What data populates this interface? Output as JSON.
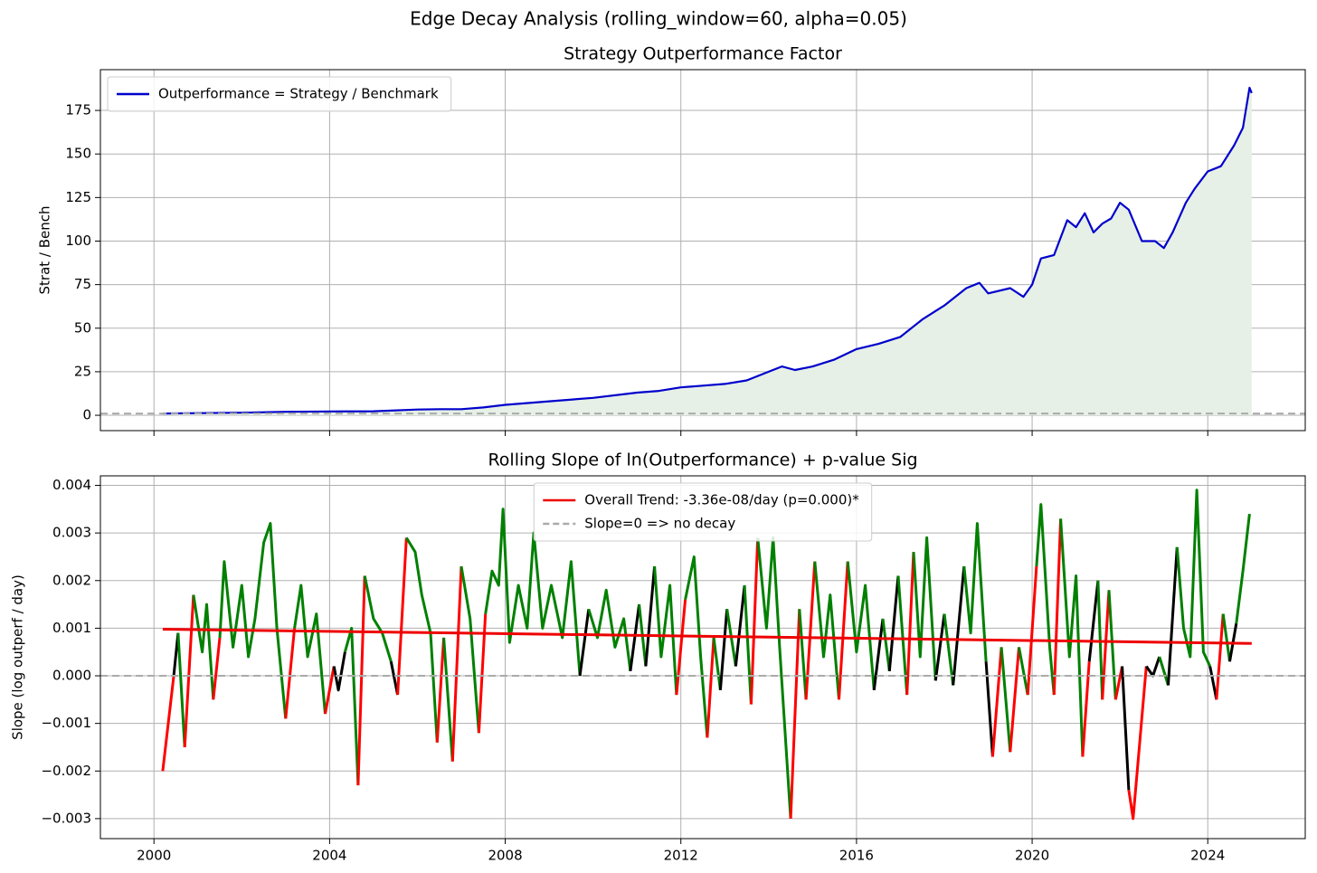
{
  "title": "Edge Decay Analysis (rolling_window=60, alpha=0.05)",
  "chart_data": [
    {
      "type": "line",
      "title": "Strategy Outperformance Factor",
      "ylabel": "Strat / Bench",
      "xlim": [
        1998.78,
        2026.22
      ],
      "ylim": [
        -8.8,
        198.4
      ],
      "xticks": [
        2000,
        2004,
        2008,
        2012,
        2016,
        2020,
        2024
      ],
      "show_xtick_labels": false,
      "yticks": [
        0,
        25,
        50,
        75,
        100,
        125,
        150,
        175
      ],
      "grid": true,
      "legend": "upper left",
      "hline": {
        "value": 1,
        "color": "#aaaaaa"
      },
      "series": [
        {
          "name": "Outperformance = Strategy / Benchmark",
          "color": "#0000cc",
          "fill": "#e6f0e6",
          "x": [
            2000.2,
            2001,
            2002,
            2003,
            2004,
            2005,
            2006,
            2006.5,
            2007,
            2007.5,
            2008,
            2009,
            2010,
            2011,
            2011.5,
            2012,
            2012.5,
            2013,
            2013.5,
            2014,
            2014.3,
            2014.6,
            2015,
            2015.5,
            2016,
            2016.5,
            2017,
            2017.5,
            2018,
            2018.5,
            2018.8,
            2019,
            2019.5,
            2019.8,
            2020,
            2020.2,
            2020.5,
            2020.8,
            2021,
            2021.2,
            2021.4,
            2021.6,
            2021.8,
            2022,
            2022.2,
            2022.5,
            2022.8,
            2023,
            2023.2,
            2023.5,
            2023.7,
            2024,
            2024.3,
            2024.6,
            2024.8,
            2024.95,
            2025
          ],
          "values": [
            1,
            1.2,
            1.5,
            2,
            2.2,
            2.3,
            3.3,
            3.5,
            3.5,
            4.5,
            6,
            8,
            10,
            13,
            14,
            16,
            17,
            18,
            20,
            25,
            28,
            26,
            28,
            32,
            38,
            41,
            45,
            55,
            63,
            73,
            76,
            70,
            73,
            68,
            75,
            90,
            92,
            112,
            108,
            116,
            105,
            110,
            113,
            122,
            118,
            100,
            100,
            96,
            105,
            122,
            130,
            140,
            143,
            155,
            165,
            188,
            185
          ]
        }
      ]
    },
    {
      "type": "line",
      "title": "Rolling Slope of ln(Outperformance) + p-value Sig",
      "ylabel": "Slope (log outperf / day)",
      "xlim": [
        1998.78,
        2026.22
      ],
      "ylim": [
        -0.00342,
        0.0042
      ],
      "xticks": [
        2000,
        2004,
        2008,
        2012,
        2016,
        2020,
        2024
      ],
      "show_xtick_labels": true,
      "yticks": [
        {
          "value": -0.003,
          "label": "−0.003"
        },
        {
          "value": -0.002,
          "label": "−0.002"
        },
        {
          "value": -0.001,
          "label": "−0.001"
        },
        {
          "value": 0,
          "label": "0.000"
        },
        0.001,
        0.002,
        0.003,
        0.004
      ],
      "grid": true,
      "legend": "upper center",
      "series": [
        {
          "x": [
            2000.2,
            2000.3,
            2000.45,
            2000.55,
            2000.7,
            2000.9,
            2001.1,
            2001.2,
            2001.35,
            2001.5,
            2001.6,
            2001.8,
            2002.0,
            2002.15,
            2002.3,
            2002.5,
            2002.65,
            2002.8,
            2003.0,
            2003.2,
            2003.35,
            2003.5,
            2003.7,
            2003.9,
            2004.1,
            2004.2,
            2004.35,
            2004.5,
            2004.65,
            2004.8,
            2005.0,
            2005.2,
            2005.4,
            2005.55,
            2005.75,
            2005.95,
            2006.1,
            2006.3,
            2006.45,
            2006.6,
            2006.8,
            2007.0,
            2007.2,
            2007.4,
            2007.55,
            2007.7,
            2007.85,
            2007.95,
            2008.1,
            2008.3,
            2008.5,
            2008.65,
            2008.85,
            2009.05,
            2009.3,
            2009.5,
            2009.7,
            2009.9,
            2010.1,
            2010.3,
            2010.5,
            2010.7,
            2010.85,
            2011.05,
            2011.2,
            2011.4,
            2011.55,
            2011.75,
            2011.9,
            2012.1,
            2012.3,
            2012.45,
            2012.6,
            2012.75,
            2012.9,
            2013.05,
            2013.25,
            2013.45,
            2013.6,
            2013.75,
            2013.95,
            2014.1,
            2014.25,
            2014.5,
            2014.7,
            2014.85,
            2015.05,
            2015.25,
            2015.4,
            2015.6,
            2015.8,
            2016.0,
            2016.2,
            2016.4,
            2016.6,
            2016.75,
            2016.95,
            2017.15,
            2017.3,
            2017.45,
            2017.6,
            2017.8,
            2018.0,
            2018.2,
            2018.45,
            2018.6,
            2018.75,
            2018.95,
            2019.1,
            2019.3,
            2019.5,
            2019.7,
            2019.9,
            2020.1,
            2020.2,
            2020.4,
            2020.5,
            2020.65,
            2020.85,
            2021.0,
            2021.15,
            2021.3,
            2021.5,
            2021.6,
            2021.75,
            2021.9,
            2022.05,
            2022.2,
            2022.3,
            2022.45,
            2022.6,
            2022.75,
            2022.9,
            2023.1,
            2023.3,
            2023.45,
            2023.6,
            2023.75,
            2023.9,
            2024.05,
            2024.2,
            2024.35,
            2024.5,
            2024.65,
            2024.8,
            2024.95
          ],
          "values": [
            -0.002,
            -0.0012,
            0.0,
            0.0009,
            -0.0015,
            0.0017,
            0.0005,
            0.0015,
            -0.0005,
            0.0008,
            0.0024,
            0.0006,
            0.0019,
            0.0004,
            0.0012,
            0.0028,
            0.0032,
            0.001,
            -0.0009,
            0.001,
            0.0019,
            0.0004,
            0.0013,
            -0.0008,
            0.0002,
            -0.0003,
            0.0005,
            0.001,
            -0.0023,
            0.0021,
            0.0012,
            0.0009,
            0.0003,
            -0.0004,
            0.0029,
            0.0026,
            0.0017,
            0.0009,
            -0.0014,
            0.0008,
            -0.0018,
            0.0023,
            0.0012,
            -0.0012,
            0.0013,
            0.0022,
            0.0019,
            0.0035,
            0.0007,
            0.0019,
            0.001,
            0.003,
            0.001,
            0.0019,
            0.0008,
            0.0024,
            0.0,
            0.0014,
            0.0008,
            0.0018,
            0.0006,
            0.0012,
            0.0001,
            0.0015,
            0.0002,
            0.0023,
            0.0004,
            0.0019,
            -0.0004,
            0.0016,
            0.0025,
            0.0004,
            -0.0013,
            0.0008,
            -0.0003,
            0.0014,
            0.0002,
            0.0019,
            -0.0006,
            0.0029,
            0.001,
            0.0029,
            0.0006,
            -0.003,
            0.0014,
            -0.0005,
            0.0024,
            0.0004,
            0.0017,
            -0.0005,
            0.0024,
            0.0005,
            0.0019,
            -0.0003,
            0.0012,
            0.0001,
            0.0021,
            -0.0004,
            0.0026,
            0.0004,
            0.0029,
            -0.0001,
            0.0013,
            -0.0002,
            0.0023,
            0.0009,
            0.0032,
            0.0003,
            -0.0017,
            0.0006,
            -0.0016,
            0.0006,
            -0.0004,
            0.0023,
            0.0036,
            0.0006,
            -0.0004,
            0.0033,
            0.0004,
            0.0021,
            -0.0017,
            0.0003,
            0.002,
            -0.0005,
            0.0018,
            -0.0005,
            0.0002,
            -0.0024,
            -0.003,
            -0.0014,
            0.0002,
            0.0,
            0.0004,
            -0.0002,
            0.0027,
            0.001,
            0.0004,
            0.0039,
            0.0005,
            0.0002,
            -0.0005,
            0.0013,
            0.0003,
            0.0011,
            0.0022,
            0.0034
          ],
          "colors": [
            "red",
            "red",
            "black",
            "green",
            "red",
            "green",
            "green",
            "green",
            "red",
            "green",
            "green",
            "green",
            "green",
            "green",
            "green",
            "green",
            "green",
            "green",
            "red",
            "green",
            "green",
            "green",
            "green",
            "red",
            "black",
            "black",
            "green",
            "green",
            "red",
            "green",
            "green",
            "green",
            "black",
            "red",
            "green",
            "green",
            "green",
            "green",
            "red",
            "green",
            "red",
            "green",
            "green",
            "red",
            "green",
            "green",
            "green",
            "green",
            "green",
            "green",
            "green",
            "green",
            "green",
            "green",
            "green",
            "green",
            "black",
            "green",
            "green",
            "green",
            "green",
            "green",
            "black",
            "green",
            "black",
            "green",
            "green",
            "green",
            "red",
            "green",
            "green",
            "green",
            "red",
            "green",
            "black",
            "green",
            "black",
            "green",
            "red",
            "green",
            "green",
            "green",
            "green",
            "red",
            "green",
            "red",
            "green",
            "green",
            "green",
            "red",
            "green",
            "green",
            "green",
            "black",
            "green",
            "black",
            "green",
            "red",
            "green",
            "green",
            "green",
            "black",
            "green",
            "black",
            "green",
            "green",
            "green",
            "black",
            "red",
            "green",
            "red",
            "green",
            "red",
            "green",
            "green",
            "green",
            "red",
            "green",
            "green",
            "green",
            "red",
            "black",
            "green",
            "red",
            "green",
            "red",
            "black",
            "red",
            "red",
            "red",
            "black",
            "black",
            "green",
            "black",
            "green",
            "green",
            "green",
            "green",
            "green",
            "black",
            "red",
            "green",
            "black",
            "green",
            "green",
            "green"
          ]
        },
        {
          "name": "Overall Trend: -3.36e-08/day (p=0.000)*",
          "color": "#ee0000",
          "x": [
            2000.2,
            2025.0
          ],
          "values": [
            0.00098,
            0.00068
          ]
        },
        {
          "name": "Slope=0 => no decay",
          "color": "#aaaaaa",
          "dash": true,
          "value": 0
        }
      ]
    }
  ]
}
